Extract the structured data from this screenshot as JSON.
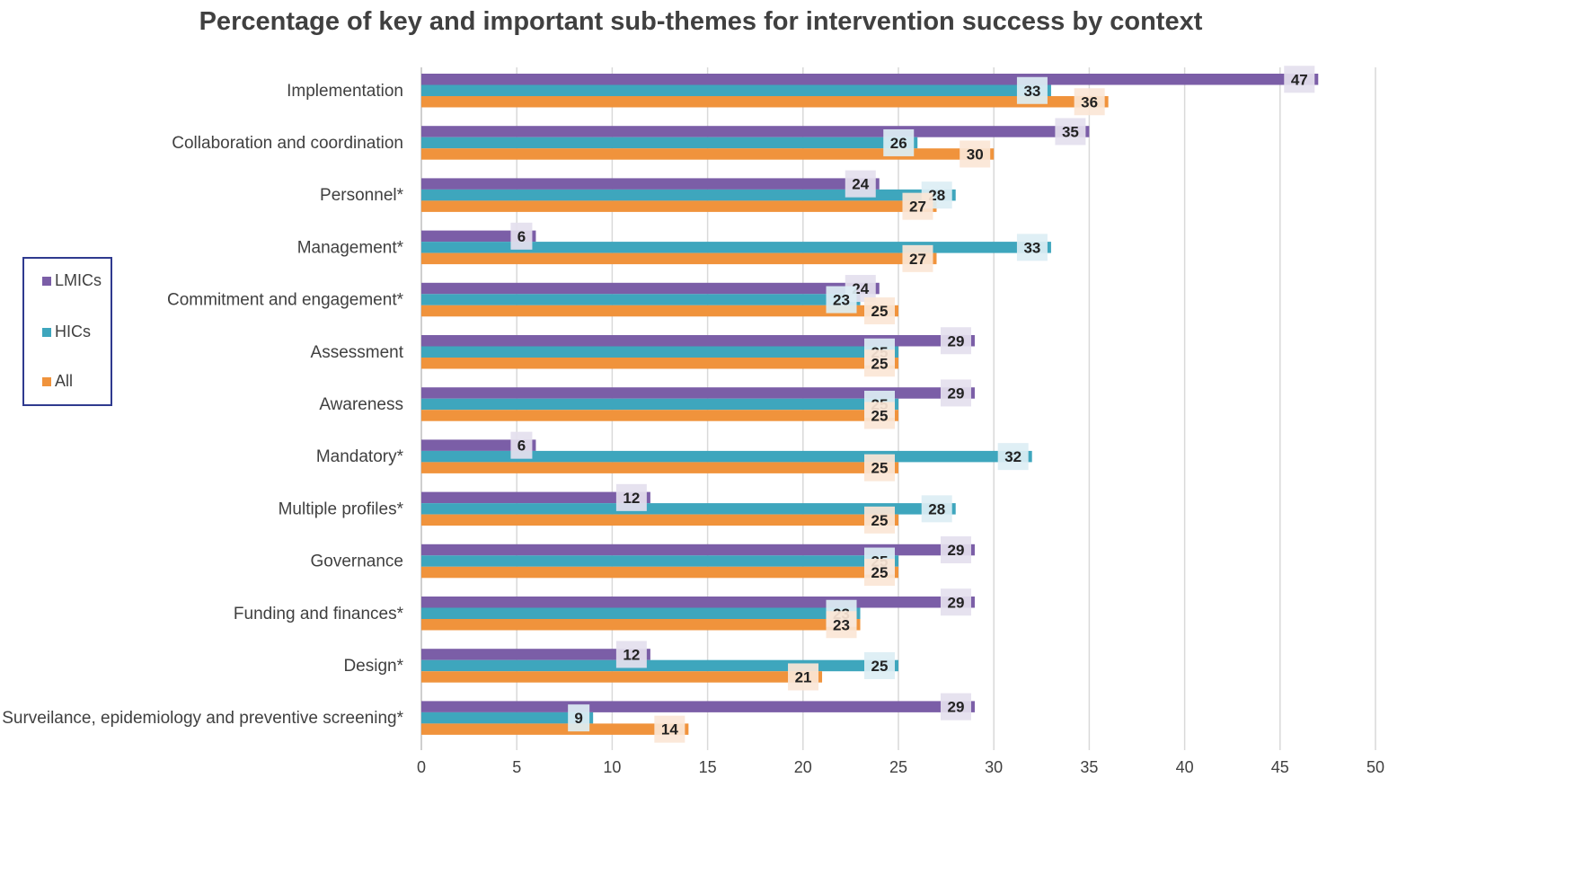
{
  "chart_data": {
    "type": "bar",
    "orientation": "horizontal",
    "title": "Percentage of key and important sub-themes for intervention success by context",
    "xlabel": "",
    "ylabel": "",
    "xlim": [
      0,
      50
    ],
    "x_ticks": [
      "0",
      "5",
      "10",
      "15",
      "20",
      "25",
      "30",
      "35",
      "40",
      "45",
      "50"
    ],
    "grid": "vertical",
    "legend_position": "left",
    "categories": [
      "Implementation",
      "Collaboration and coordination",
      "Personnel*",
      "Management*",
      "Commitment and engagement*",
      "Assessment",
      "Awareness",
      "Mandatory*",
      "Multiple profiles*",
      "Governance",
      "Funding and finances*",
      "Design*",
      "Surveilance, epidemiology and preventive screening*"
    ],
    "series": [
      {
        "name": "LMICs",
        "color": "#7b5ea7",
        "values": [
          47,
          35,
          24,
          6,
          24,
          29,
          29,
          6,
          12,
          29,
          29,
          12,
          29
        ]
      },
      {
        "name": "HICs",
        "color": "#3ea6bd",
        "values": [
          33,
          26,
          28,
          33,
          23,
          25,
          25,
          32,
          28,
          25,
          23,
          25,
          9
        ]
      },
      {
        "name": "All",
        "color": "#f0933c",
        "values": [
          36,
          30,
          27,
          27,
          25,
          25,
          25,
          25,
          25,
          25,
          23,
          21,
          14
        ]
      }
    ]
  }
}
